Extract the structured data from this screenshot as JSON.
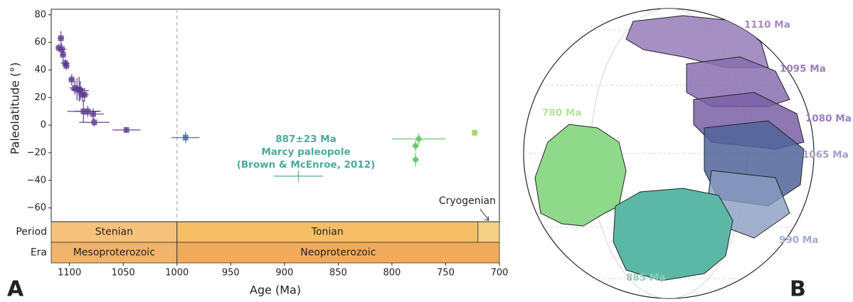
{
  "chart_data": {
    "type": "scatter",
    "panel_label": "A",
    "xlabel": "Age (Ma)",
    "ylabel": "Paleolatitude (°)",
    "xlim": [
      1117,
      700
    ],
    "ylim": [
      -70,
      84
    ],
    "xticks": [
      1100,
      1050,
      1000,
      950,
      900,
      850,
      800,
      750,
      700
    ],
    "yticks": [
      {
        "value": -60,
        "label": "−60"
      },
      {
        "value": -40,
        "label": "−40"
      },
      {
        "value": -20,
        "label": "−20"
      },
      0,
      20,
      40,
      60,
      80
    ],
    "divider_x": 1000,
    "series": [
      {
        "color": "#5b3a8c",
        "marker": "square",
        "x": [
          1110,
          1108,
          1107,
          1106,
          1104,
          1103,
          1098,
          1095,
          1093,
          1091,
          1090,
          1088,
          1086,
          1087,
          1083,
          1078,
          1077,
          1047
        ],
        "values": [
          56,
          63,
          55,
          51,
          45,
          43,
          33,
          27,
          26,
          26,
          25,
          22,
          22,
          10,
          10,
          8,
          2,
          -3.5
        ],
        "xerr": [
          3,
          3,
          4,
          3,
          4,
          3,
          3,
          5,
          6,
          5,
          8,
          4,
          4,
          15,
          12,
          10,
          14,
          13
        ],
        "yerr": [
          3,
          5,
          4,
          4,
          3,
          3,
          4,
          5,
          8,
          9,
          7,
          5,
          5,
          8,
          4,
          4,
          3,
          2
        ]
      },
      {
        "color": "#3e6593",
        "marker": "square",
        "x": [
          992
        ],
        "values": [
          -9
        ],
        "xerr": [
          13
        ],
        "yerr": [
          4
        ]
      },
      {
        "color": "#5cc862",
        "marker": "circle",
        "x": [
          775,
          778,
          778
        ],
        "values": [
          -10,
          -15,
          -25
        ],
        "xerr": [
          25,
          3,
          3
        ],
        "yerr": [
          4,
          4,
          5
        ]
      },
      {
        "color": "#95d24f",
        "marker": "square",
        "x": [
          723
        ],
        "values": [
          -5.5
        ],
        "xerr": [
          2
        ],
        "yerr": [
          2
        ]
      },
      {
        "color": "#4aab9a",
        "marker": "none",
        "x": [
          887
        ],
        "values": [
          -37
        ],
        "xerr": [
          23
        ],
        "yerr": [
          4
        ]
      }
    ],
    "annotation": {
      "lines": [
        "887±23 Ma",
        "Marcy paleopole",
        "(Brown & McEnroe, 2012)"
      ],
      "color": "#4aab9a"
    },
    "period_label": "Period",
    "era_label": "Era",
    "periods": [
      {
        "label": "Stenian",
        "start": 1200,
        "end": 1000,
        "color": "#f6c27c"
      },
      {
        "label": "Tonian",
        "start": 1000,
        "end": 720,
        "color": "#f6bf66"
      },
      {
        "label": "Cryogenian",
        "start": 720,
        "end": 635,
        "color": "#f4cf86"
      }
    ],
    "eras": [
      {
        "label": "Mesoproterozoic",
        "start": 1600,
        "end": 1000,
        "color": "#f2b36a"
      },
      {
        "label": "Neoproterozoic",
        "start": 1000,
        "end": 538,
        "color": "#f1aa5c"
      }
    ]
  },
  "map": {
    "panel_label": "B",
    "labels": [
      {
        "text": "1110 Ma",
        "color": "#a48bbf"
      },
      {
        "text": "1095 Ma",
        "color": "#9a80b8"
      },
      {
        "text": "1080 Ma",
        "color": "#9a80b8"
      },
      {
        "text": "1065 Ma",
        "color": "#a99cc4"
      },
      {
        "text": "990 Ma",
        "color": "#a2adc9"
      },
      {
        "text": "780 Ma",
        "color": "#b6e39b"
      },
      {
        "text": "885 Ma",
        "color": "#8fcdb9"
      }
    ]
  }
}
